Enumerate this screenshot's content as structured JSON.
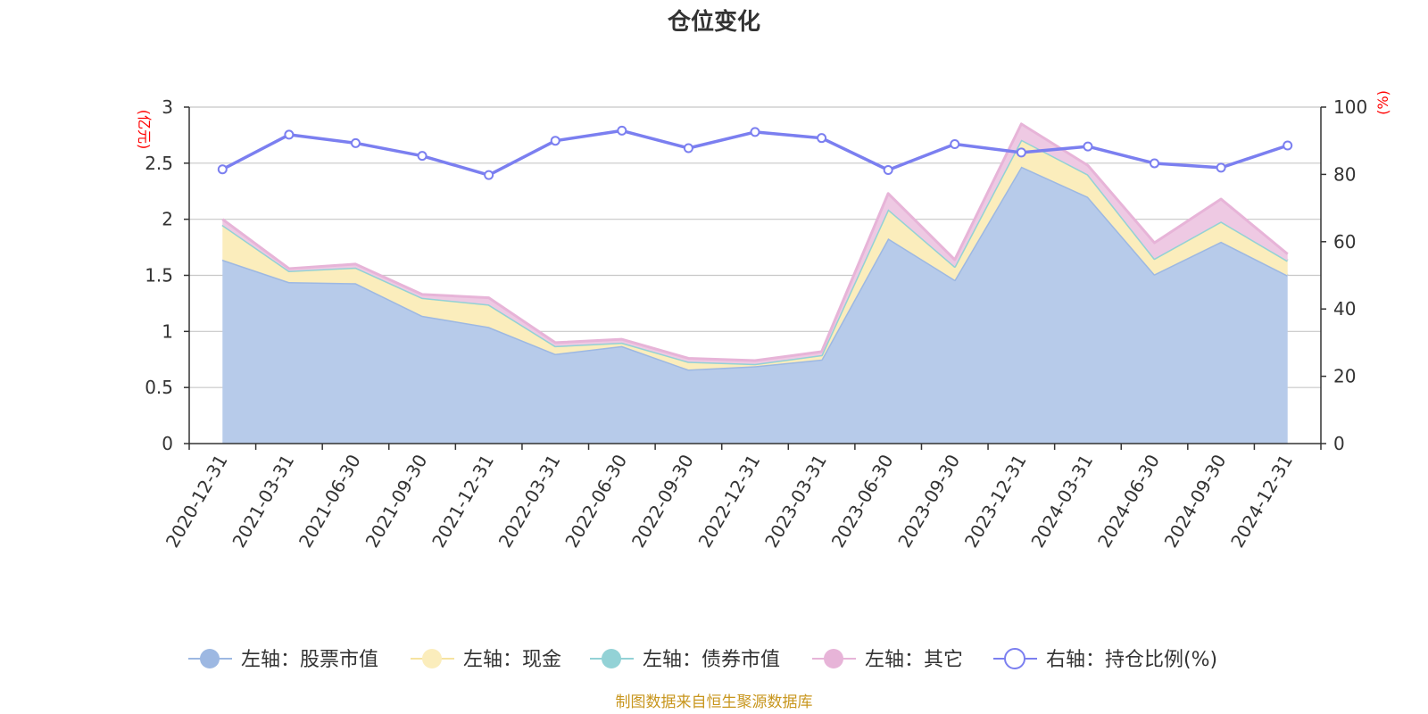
{
  "chart_data": {
    "type": "area",
    "title": "仓位变化",
    "categories": [
      "2020-12-31",
      "2021-03-31",
      "2021-06-30",
      "2021-09-30",
      "2021-12-31",
      "2022-03-31",
      "2022-06-30",
      "2022-09-30",
      "2022-12-31",
      "2023-03-31",
      "2023-06-30",
      "2023-09-30",
      "2023-12-31",
      "2024-03-31",
      "2024-06-30",
      "2024-09-30",
      "2024-12-31"
    ],
    "left_axis": {
      "unit": "(亿元)",
      "ylim": [
        0,
        3
      ],
      "ticks": [
        "0",
        "0.5",
        "1",
        "1.5",
        "2",
        "2.5",
        "3"
      ]
    },
    "right_axis": {
      "unit": "(%)",
      "ylim": [
        0,
        100
      ],
      "ticks": [
        "0",
        "20",
        "40",
        "60",
        "80",
        "100"
      ]
    },
    "stacked": true,
    "series": [
      {
        "name": "左轴：股票市值",
        "axis": "left",
        "values": [
          1.64,
          1.44,
          1.43,
          1.14,
          1.04,
          0.8,
          0.87,
          0.66,
          0.69,
          0.75,
          1.83,
          1.46,
          2.47,
          2.2,
          1.51,
          1.8,
          1.5
        ]
      },
      {
        "name": "左轴：现金",
        "axis": "left",
        "values": [
          0.31,
          0.1,
          0.14,
          0.16,
          0.2,
          0.07,
          0.03,
          0.07,
          0.02,
          0.04,
          0.26,
          0.12,
          0.24,
          0.2,
          0.14,
          0.18,
          0.13
        ]
      },
      {
        "name": "左轴：债券市值",
        "axis": "left",
        "values": [
          0,
          0,
          0,
          0,
          0,
          0,
          0,
          0,
          0,
          0,
          0,
          0,
          0,
          0,
          0,
          0,
          0
        ]
      },
      {
        "name": "左轴：其它",
        "axis": "left",
        "values": [
          0.05,
          0.02,
          0.03,
          0.03,
          0.06,
          0.03,
          0.03,
          0.03,
          0.03,
          0.03,
          0.14,
          0.06,
          0.14,
          0.08,
          0.14,
          0.2,
          0.06
        ]
      },
      {
        "name": "右轴：持仓比例(%)",
        "axis": "right",
        "type": "line",
        "values": [
          81.5,
          91.8,
          89.3,
          85.5,
          79.8,
          90.0,
          93.0,
          87.8,
          92.6,
          90.8,
          81.3,
          89.0,
          86.5,
          88.3,
          83.3,
          82.0,
          88.6
        ]
      }
    ],
    "grid": true,
    "legend_position": "bottom"
  },
  "colors": {
    "stock_fill": "#b7cbea",
    "stock_line": "#9db8e2",
    "cash_fill": "#fbedbc",
    "cash_line": "#f6e3a0",
    "bond_fill": "#a5d8db",
    "bond_line": "#93d2d6",
    "other_fill": "#eec9e3",
    "other_line": "#e7b4d8",
    "ratio_line": "#7b7ff0"
  },
  "source": "制图数据来自恒生聚源数据库"
}
